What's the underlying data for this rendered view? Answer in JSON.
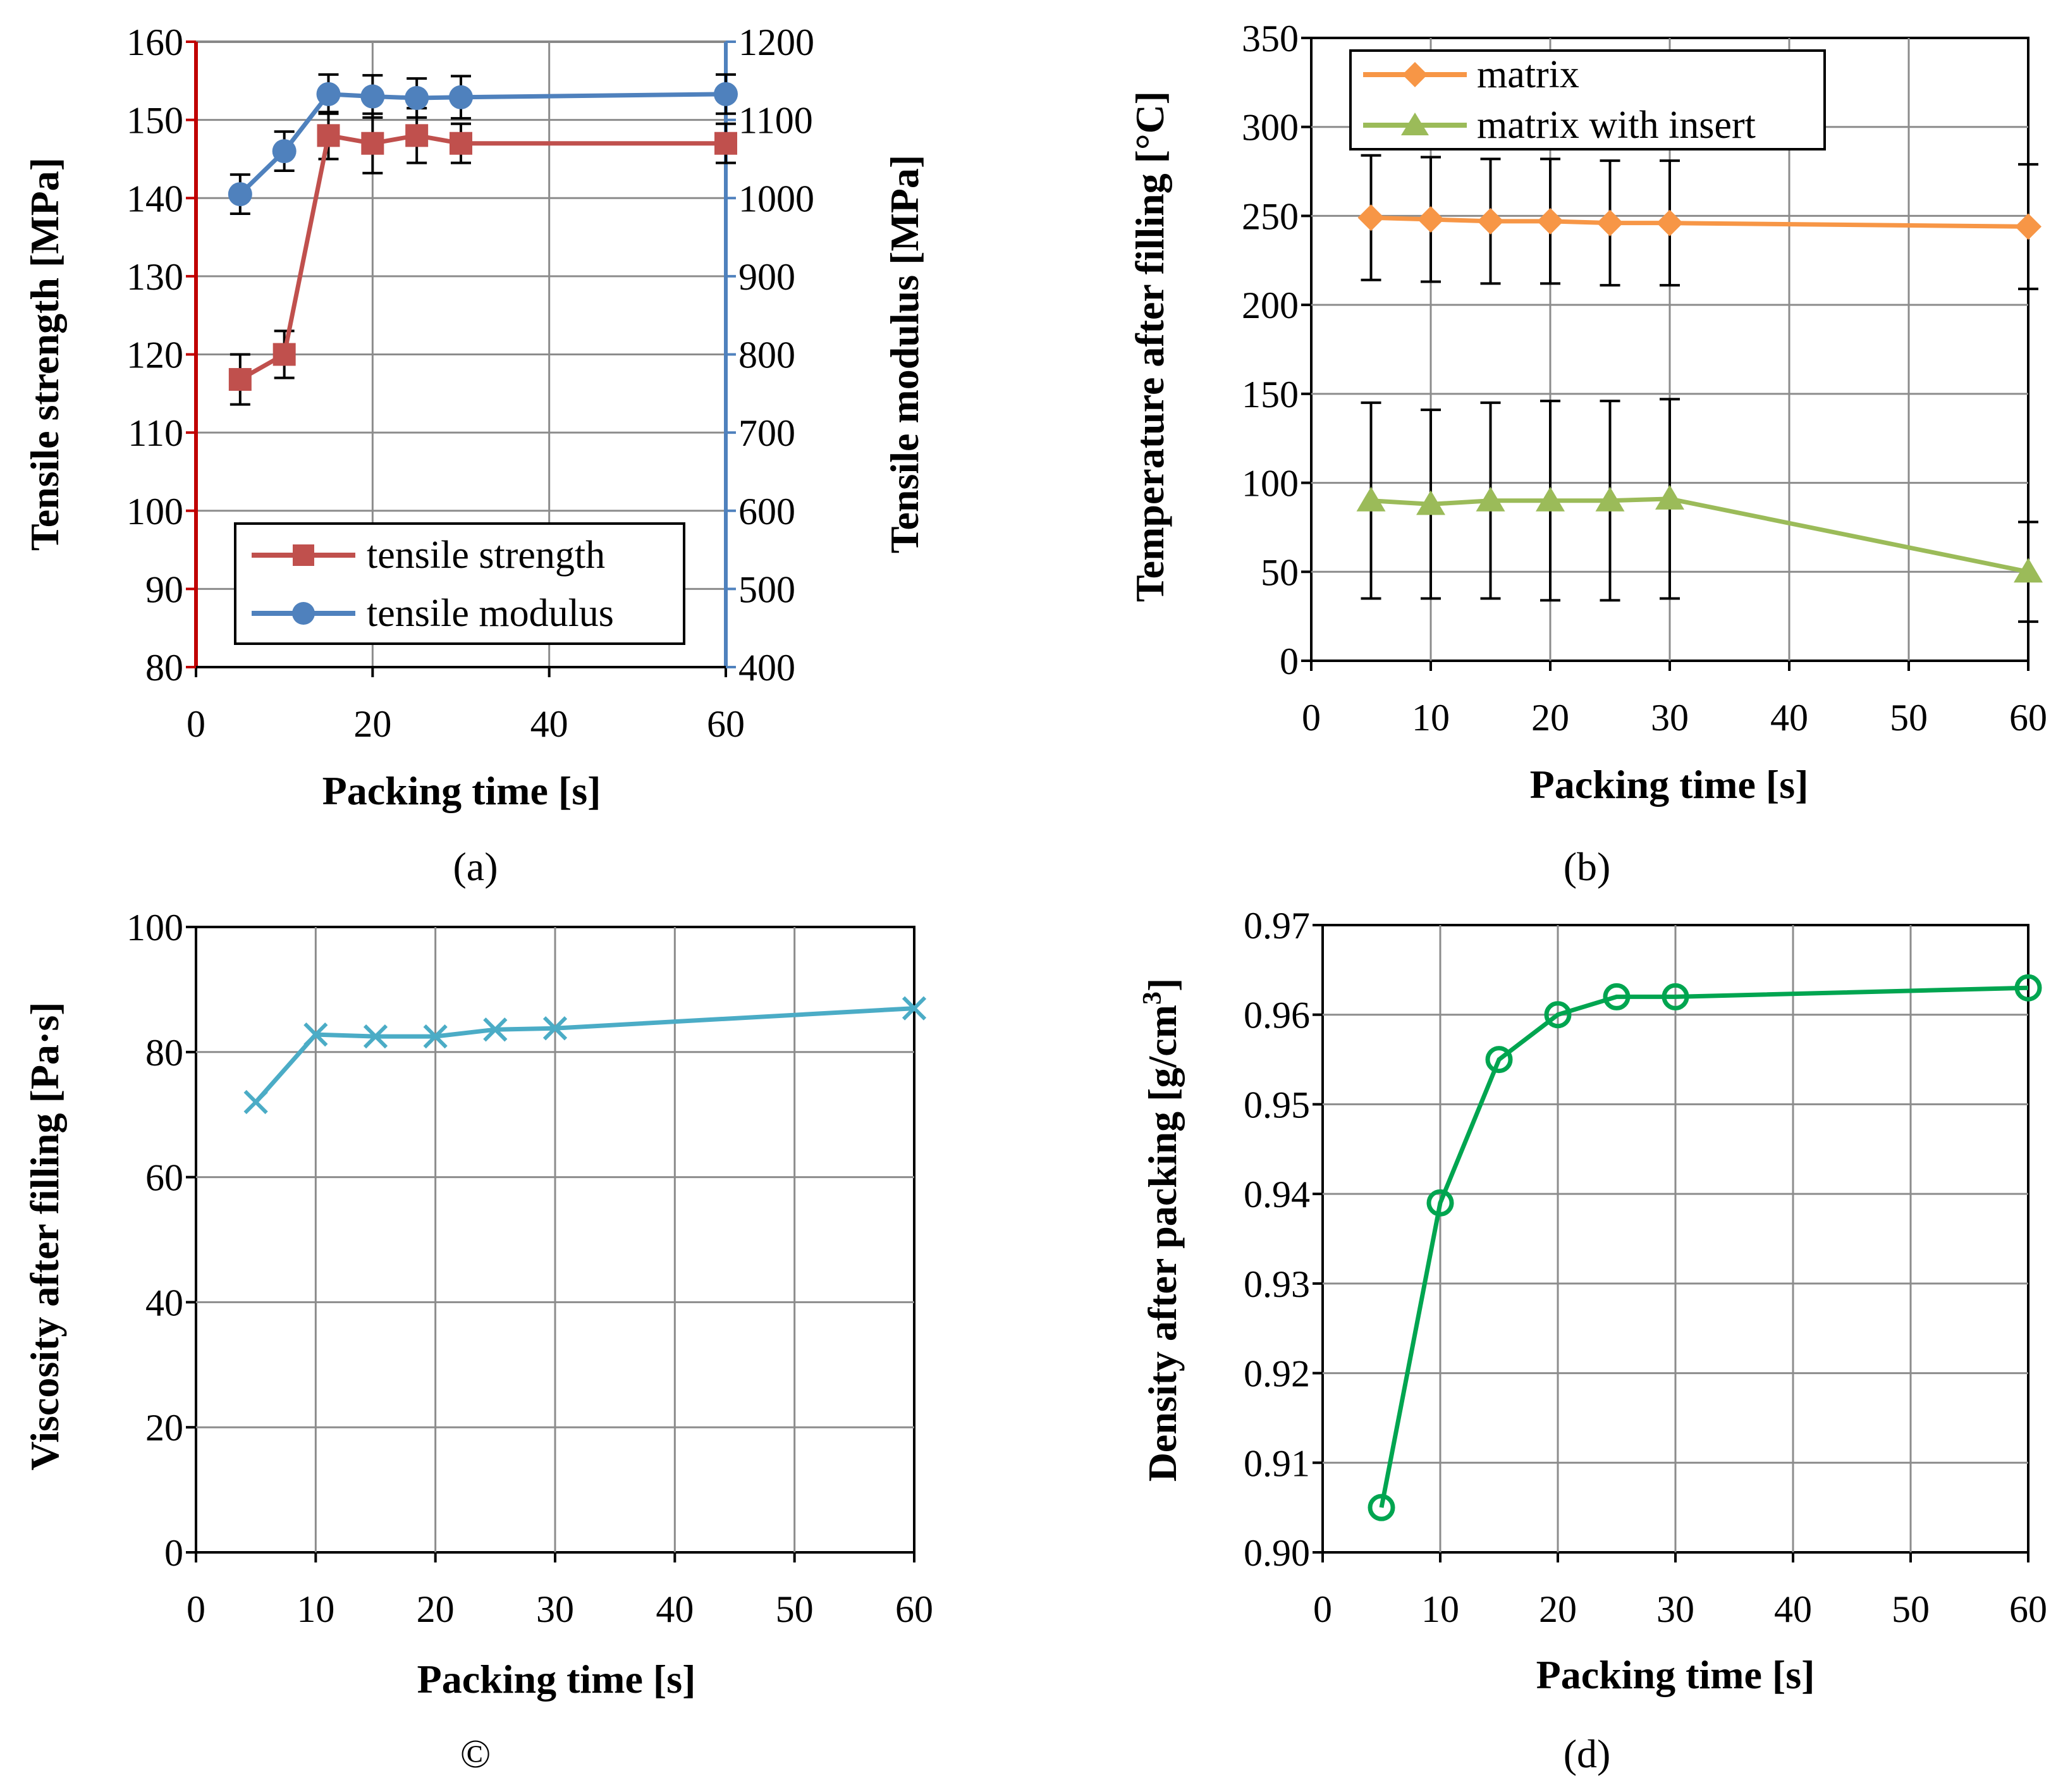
{
  "chart_data": [
    {
      "panel": "a",
      "type": "line",
      "caption": "(a)",
      "xlabel": "Packing time [s]",
      "ylabel": "Tensile strength [MPa]",
      "ylabel_right": "Tensile modulus [MPa]",
      "xlim": [
        0,
        60
      ],
      "ylim": [
        80,
        160
      ],
      "ylim_right": [
        400,
        1200
      ],
      "x_ticks": [
        "0",
        "20",
        "40",
        "60"
      ],
      "y_ticks": [
        "80",
        "90",
        "100",
        "110",
        "120",
        "130",
        "140",
        "150",
        "160"
      ],
      "y_ticks_right": [
        "400",
        "500",
        "600",
        "700",
        "800",
        "900",
        "1000",
        "1100",
        "1200"
      ],
      "legend": "bottom-center",
      "series": [
        {
          "name": "tensile strength",
          "axis": "left",
          "color": "#c0504d",
          "marker": "square",
          "x": [
            5,
            10,
            15,
            20,
            25,
            30,
            60
          ],
          "values": [
            116.8,
            120,
            148,
            147,
            148,
            147,
            147
          ],
          "error": [
            3.2,
            3,
            3,
            3.8,
            3.5,
            2.5,
            2.5
          ]
        },
        {
          "name": "tensile modulus",
          "axis": "right",
          "color": "#4f81bd",
          "marker": "circle",
          "x": [
            5,
            10,
            15,
            20,
            25,
            30,
            60
          ],
          "values": [
            1005,
            1060,
            1133,
            1130,
            1128,
            1129,
            1133
          ],
          "error": [
            25,
            25,
            25,
            27,
            25,
            27,
            25
          ]
        }
      ]
    },
    {
      "panel": "b",
      "type": "line",
      "caption": "(b)",
      "xlabel": "Packing time [s]",
      "ylabel": "Temperature after filling [°C]",
      "xlim": [
        0,
        60
      ],
      "ylim": [
        0,
        350
      ],
      "x_ticks": [
        "0",
        "10",
        "20",
        "30",
        "40",
        "50",
        "60"
      ],
      "y_ticks": [
        "0",
        "50",
        "100",
        "150",
        "200",
        "250",
        "300",
        "350"
      ],
      "legend": "top-left",
      "series": [
        {
          "name": "matrix",
          "color": "#f79646",
          "marker": "diamond",
          "x": [
            5,
            10,
            15,
            20,
            25,
            30,
            60
          ],
          "values": [
            249,
            248,
            247,
            247,
            246,
            246,
            244
          ],
          "error": [
            35,
            35,
            35,
            35,
            35,
            35,
            35
          ]
        },
        {
          "name": "matrix with insert",
          "color": "#9bbb59",
          "marker": "triangle",
          "x": [
            5,
            10,
            15,
            20,
            25,
            30,
            60
          ],
          "values": [
            90,
            88,
            90,
            90,
            90,
            91,
            50
          ],
          "error": [
            55,
            53,
            55,
            56,
            56,
            56,
            28
          ]
        }
      ]
    },
    {
      "panel": "c",
      "type": "line",
      "caption": "©",
      "xlabel": "Packing time [s]",
      "ylabel": "Viscosity after filling [Pa·s]",
      "xlim": [
        0,
        60
      ],
      "ylim": [
        0,
        100
      ],
      "x_ticks": [
        "0",
        "10",
        "20",
        "30",
        "40",
        "50",
        "60"
      ],
      "y_ticks": [
        "0",
        "20",
        "40",
        "60",
        "80",
        "100"
      ],
      "series": [
        {
          "name": "viscosity",
          "color": "#4bacc6",
          "marker": "x",
          "x": [
            5,
            10,
            15,
            20,
            25,
            30,
            60
          ],
          "values": [
            72,
            82.8,
            82.5,
            82.5,
            83.6,
            83.8,
            87
          ],
          "error": [
            0,
            0,
            0,
            0,
            0,
            0,
            0
          ]
        }
      ]
    },
    {
      "panel": "d",
      "type": "line",
      "caption": "(d)",
      "xlabel": "Packing time [s]",
      "ylabel": "Density after packing [g/cm",
      "ylabel_sup": "3",
      "ylabel_end": "]",
      "xlim": [
        0,
        60
      ],
      "ylim": [
        0.9,
        0.97
      ],
      "x_ticks": [
        "0",
        "10",
        "20",
        "30",
        "40",
        "50",
        "60"
      ],
      "y_ticks": [
        "0.90",
        "0.91",
        "0.92",
        "0.93",
        "0.94",
        "0.95",
        "0.96",
        "0.97"
      ],
      "series": [
        {
          "name": "density",
          "color": "#00a550",
          "marker": "open-circle",
          "x": [
            5,
            10,
            15,
            20,
            25,
            30,
            60
          ],
          "values": [
            0.905,
            0.939,
            0.955,
            0.96,
            0.962,
            0.962,
            0.963
          ]
        }
      ]
    }
  ]
}
